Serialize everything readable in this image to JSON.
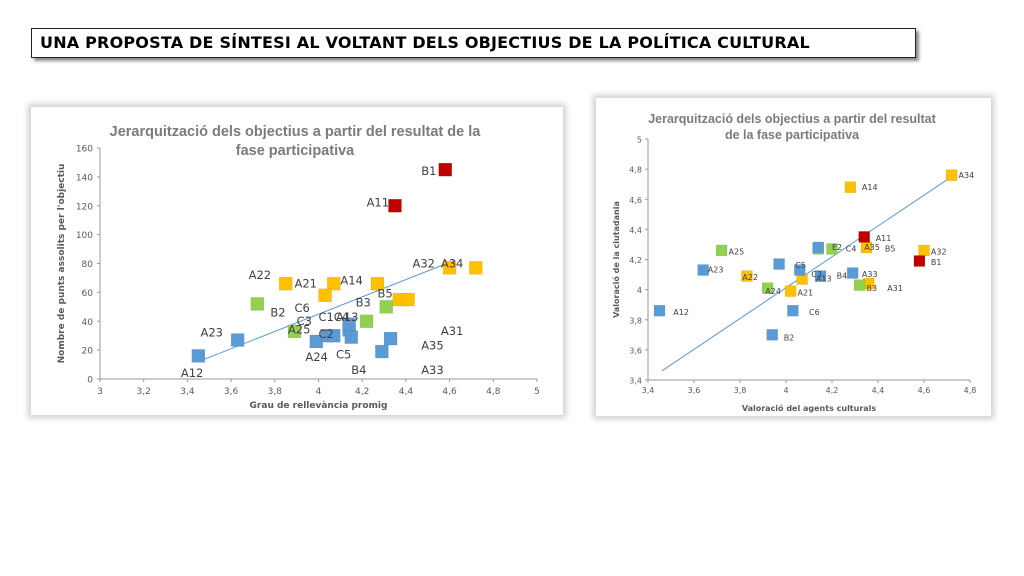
{
  "header": {
    "title": "UNA PROPOSTA DE SÍNTESI AL VOLTANT DELS OBJECTIUS DE LA POLÍTICA CULTURAL"
  },
  "colors": {
    "blue": "#5b9bd5",
    "green": "#92d050",
    "yellow": "#ffc000",
    "red": "#c00000",
    "trend": "#5b9bd5"
  },
  "chart_data": [
    {
      "type": "scatter",
      "title_lines": [
        "Jerarquització dels objectius a partir del resultat de la",
        "fase participativa"
      ],
      "xlabel": "Grau de rellevància promig",
      "ylabel": "Nombre de punts assolits per l'objectiu",
      "xlim": [
        3,
        5
      ],
      "ylim": [
        0,
        160
      ],
      "xticks": [
        "3",
        "3,2",
        "3,4",
        "3,6",
        "3,8",
        "4",
        "4,2",
        "4,4",
        "4,6",
        "4,8",
        "5"
      ],
      "yticks": [
        "0",
        "20",
        "40",
        "60",
        "80",
        "100",
        "120",
        "140",
        "160"
      ],
      "trendline": {
        "x": [
          3.45,
          4.62
        ],
        "y": [
          12,
          82
        ]
      },
      "labels": [
        {
          "text": "B1",
          "x": 4.47,
          "y": 144
        },
        {
          "text": "A11",
          "x": 4.22,
          "y": 122
        },
        {
          "text": "A22",
          "x": 3.68,
          "y": 72
        },
        {
          "text": "A21",
          "x": 3.89,
          "y": 66
        },
        {
          "text": "A14",
          "x": 4.1,
          "y": 68
        },
        {
          "text": "A32",
          "x": 4.43,
          "y": 80
        },
        {
          "text": "A34",
          "x": 4.56,
          "y": 80
        },
        {
          "text": "B5",
          "x": 4.27,
          "y": 59
        },
        {
          "text": "B3",
          "x": 4.17,
          "y": 53
        },
        {
          "text": "B2",
          "x": 3.78,
          "y": 46
        },
        {
          "text": "C6",
          "x": 3.89,
          "y": 49
        },
        {
          "text": "C1",
          "x": 4.0,
          "y": 43
        },
        {
          "text": "C4",
          "x": 4.07,
          "y": 43
        },
        {
          "text": "A13",
          "x": 4.08,
          "y": 43
        },
        {
          "text": "C3",
          "x": 3.9,
          "y": 40
        },
        {
          "text": "A25",
          "x": 3.86,
          "y": 34
        },
        {
          "text": "C2",
          "x": 4.0,
          "y": 31
        },
        {
          "text": "A23",
          "x": 3.46,
          "y": 32
        },
        {
          "text": "A31",
          "x": 4.56,
          "y": 33
        },
        {
          "text": "A24",
          "x": 3.94,
          "y": 15
        },
        {
          "text": "C5",
          "x": 4.08,
          "y": 17
        },
        {
          "text": "A35",
          "x": 4.47,
          "y": 23
        },
        {
          "text": "B4",
          "x": 4.15,
          "y": 6
        },
        {
          "text": "A33",
          "x": 4.47,
          "y": 6
        },
        {
          "text": "A12",
          "x": 3.37,
          "y": 4
        }
      ],
      "points": [
        {
          "x": 4.58,
          "y": 145,
          "c": "red"
        },
        {
          "x": 4.35,
          "y": 120,
          "c": "red"
        },
        {
          "x": 3.85,
          "y": 66,
          "c": "yellow"
        },
        {
          "x": 4.07,
          "y": 66,
          "c": "yellow"
        },
        {
          "x": 4.27,
          "y": 66,
          "c": "yellow"
        },
        {
          "x": 4.03,
          "y": 58,
          "c": "yellow"
        },
        {
          "x": 4.37,
          "y": 55,
          "c": "yellow"
        },
        {
          "x": 4.41,
          "y": 55,
          "c": "yellow"
        },
        {
          "x": 4.6,
          "y": 77,
          "c": "yellow"
        },
        {
          "x": 4.72,
          "y": 77,
          "c": "yellow"
        },
        {
          "x": 3.72,
          "y": 52,
          "c": "green"
        },
        {
          "x": 4.31,
          "y": 50,
          "c": "green"
        },
        {
          "x": 4.22,
          "y": 40,
          "c": "green"
        },
        {
          "x": 3.89,
          "y": 33,
          "c": "green"
        },
        {
          "x": 3.45,
          "y": 16,
          "c": "blue"
        },
        {
          "x": 3.63,
          "y": 27,
          "c": "blue"
        },
        {
          "x": 3.99,
          "y": 26,
          "c": "blue"
        },
        {
          "x": 4.04,
          "y": 30,
          "c": "blue"
        },
        {
          "x": 4.07,
          "y": 30,
          "c": "blue"
        },
        {
          "x": 4.14,
          "y": 34,
          "c": "blue"
        },
        {
          "x": 4.15,
          "y": 29,
          "c": "blue"
        },
        {
          "x": 4.14,
          "y": 38,
          "c": "blue"
        },
        {
          "x": 4.29,
          "y": 19,
          "c": "blue"
        },
        {
          "x": 4.33,
          "y": 28,
          "c": "blue"
        }
      ]
    },
    {
      "type": "scatter",
      "title_lines": [
        "Jerarquització dels objectius a partir del resultat",
        "de la fase participativa"
      ],
      "xlabel": "Valoració del agents culturals",
      "ylabel": "Valoració de la ciutadania",
      "xlim": [
        3.4,
        4.8
      ],
      "ylim": [
        3.4,
        5
      ],
      "xticks": [
        "3,4",
        "3,6",
        "3,8",
        "4",
        "4,2",
        "4,4",
        "4,6",
        "4,8"
      ],
      "yticks": [
        "3,4",
        "3,6",
        "3,8",
        "4",
        "4,2",
        "4,4",
        "4,6",
        "4,8",
        "5"
      ],
      "trendline": {
        "x": [
          3.46,
          4.72
        ],
        "y": [
          3.46,
          4.75
        ]
      },
      "labels": [
        {
          "text": "A34",
          "x": 4.75,
          "y": 4.76
        },
        {
          "text": "A14",
          "x": 4.33,
          "y": 4.68
        },
        {
          "text": "A11",
          "x": 4.39,
          "y": 4.34
        },
        {
          "text": "A25",
          "x": 3.75,
          "y": 4.25
        },
        {
          "text": "E2",
          "x": 4.2,
          "y": 4.28
        },
        {
          "text": "C4",
          "x": 4.26,
          "y": 4.27
        },
        {
          "text": "A35",
          "x": 4.34,
          "y": 4.28
        },
        {
          "text": "B5",
          "x": 4.43,
          "y": 4.27
        },
        {
          "text": "A32",
          "x": 4.63,
          "y": 4.25
        },
        {
          "text": "B1",
          "x": 4.63,
          "y": 4.18
        },
        {
          "text": "C5",
          "x": 4.04,
          "y": 4.16
        },
        {
          "text": "A23",
          "x": 3.66,
          "y": 4.13
        },
        {
          "text": "C3",
          "x": 4.11,
          "y": 4.1
        },
        {
          "text": "A22",
          "x": 3.81,
          "y": 4.08
        },
        {
          "text": "A13",
          "x": 4.13,
          "y": 4.07
        },
        {
          "text": "B4",
          "x": 4.22,
          "y": 4.09
        },
        {
          "text": "A33",
          "x": 4.33,
          "y": 4.1
        },
        {
          "text": "A24",
          "x": 3.91,
          "y": 3.99
        },
        {
          "text": "A21",
          "x": 4.05,
          "y": 3.98
        },
        {
          "text": "B3",
          "x": 4.35,
          "y": 4.01
        },
        {
          "text": "A31",
          "x": 4.44,
          "y": 4.01
        },
        {
          "text": "A12",
          "x": 3.51,
          "y": 3.85
        },
        {
          "text": "C6",
          "x": 4.1,
          "y": 3.85
        },
        {
          "text": "B2",
          "x": 3.99,
          "y": 3.68
        }
      ],
      "points": [
        {
          "x": 4.72,
          "y": 4.76,
          "c": "yellow"
        },
        {
          "x": 4.28,
          "y": 4.68,
          "c": "yellow"
        },
        {
          "x": 4.35,
          "y": 4.28,
          "c": "yellow"
        },
        {
          "x": 4.6,
          "y": 4.26,
          "c": "yellow"
        },
        {
          "x": 3.83,
          "y": 4.09,
          "c": "yellow"
        },
        {
          "x": 4.07,
          "y": 4.07,
          "c": "yellow"
        },
        {
          "x": 4.02,
          "y": 3.99,
          "c": "yellow"
        },
        {
          "x": 4.36,
          "y": 4.04,
          "c": "yellow"
        },
        {
          "x": 4.34,
          "y": 4.35,
          "c": "red"
        },
        {
          "x": 4.58,
          "y": 4.19,
          "c": "red"
        },
        {
          "x": 3.72,
          "y": 4.26,
          "c": "green"
        },
        {
          "x": 4.14,
          "y": 4.27,
          "c": "green"
        },
        {
          "x": 4.2,
          "y": 4.27,
          "c": "green"
        },
        {
          "x": 3.92,
          "y": 4.01,
          "c": "green"
        },
        {
          "x": 4.32,
          "y": 4.03,
          "c": "green"
        },
        {
          "x": 3.45,
          "y": 3.86,
          "c": "blue"
        },
        {
          "x": 3.64,
          "y": 4.13,
          "c": "blue"
        },
        {
          "x": 3.97,
          "y": 4.17,
          "c": "blue"
        },
        {
          "x": 4.06,
          "y": 4.13,
          "c": "blue"
        },
        {
          "x": 4.14,
          "y": 4.28,
          "c": "blue"
        },
        {
          "x": 4.15,
          "y": 4.09,
          "c": "blue"
        },
        {
          "x": 4.29,
          "y": 4.11,
          "c": "blue"
        },
        {
          "x": 4.03,
          "y": 3.86,
          "c": "blue"
        },
        {
          "x": 3.94,
          "y": 3.7,
          "c": "blue"
        }
      ]
    }
  ]
}
